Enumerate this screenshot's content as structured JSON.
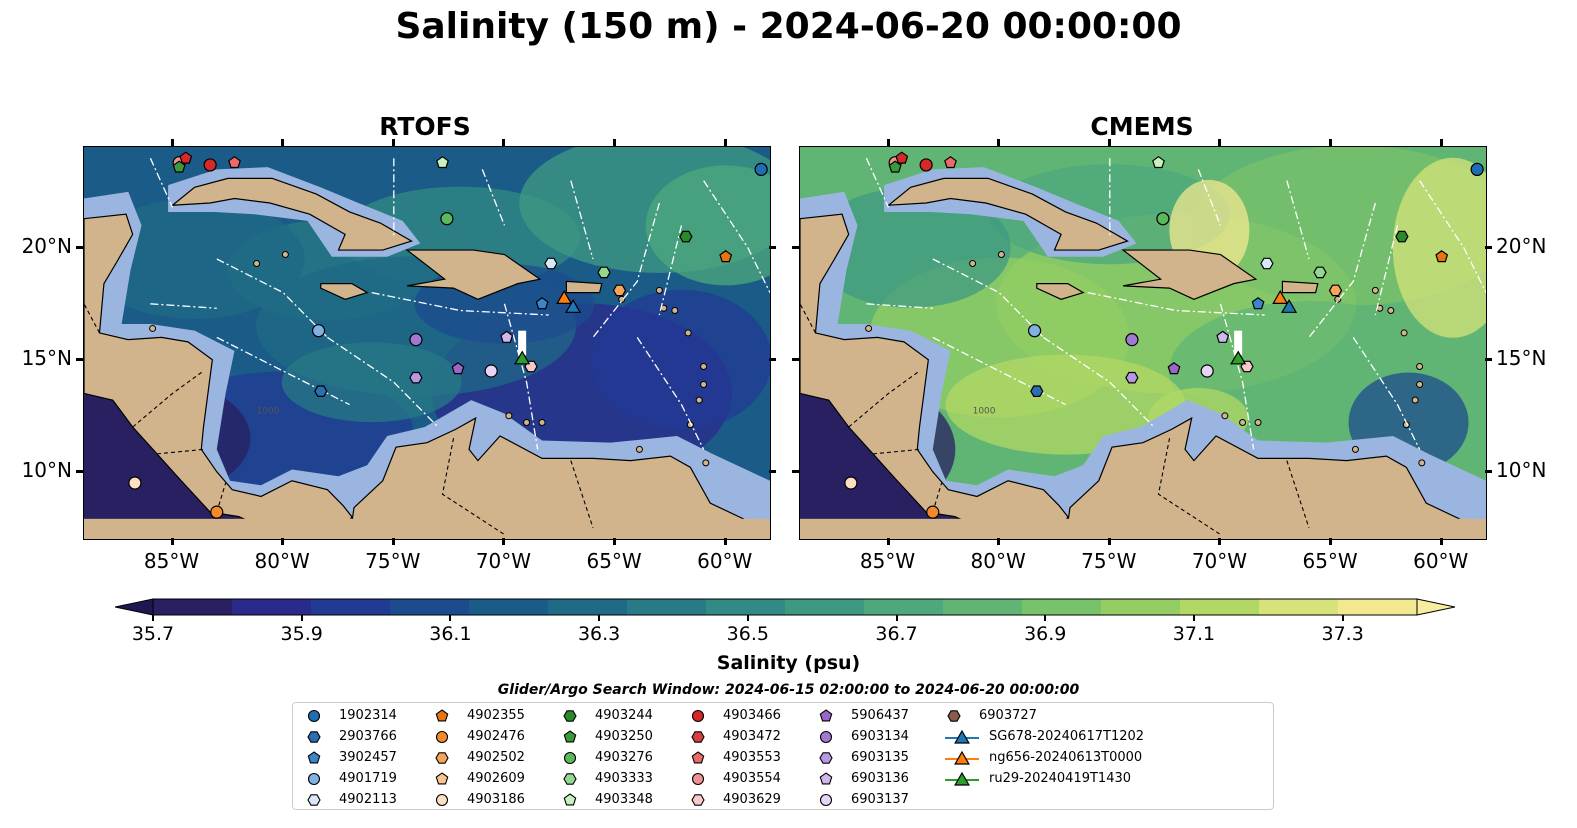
{
  "title": "Salinity (150 m) - 2024-06-20 00:00:00",
  "panels": [
    {
      "name": "rtofs",
      "title": "RTOFS",
      "palette": "low"
    },
    {
      "name": "cmems",
      "title": "CMEMS",
      "palette": "high"
    }
  ],
  "map": {
    "lon_range": [
      -89,
      -58
    ],
    "lat_range": [
      7,
      24.5
    ],
    "lon_ticks": [
      "85°W",
      "80°W",
      "75°W",
      "70°W",
      "65°W",
      "60°W"
    ],
    "lon_tick_values": [
      -85,
      -80,
      -75,
      -70,
      -65,
      -60
    ],
    "lat_ticks": [
      "20°N",
      "15°N",
      "10°N"
    ],
    "lat_tick_values": [
      20,
      15,
      10
    ],
    "land_color": "#d2b48c",
    "shelf_color": "#9ab5e0",
    "bathymetry_label": "1000"
  },
  "colorbar": {
    "title": "Salinity (psu)",
    "ticks": [
      "35.7",
      "35.9",
      "36.1",
      "36.3",
      "36.5",
      "36.7",
      "36.9",
      "37.1",
      "37.3"
    ],
    "min": 35.7,
    "max": 37.4,
    "colors": [
      "#282060",
      "#2a2a8c",
      "#213a94",
      "#1c4c8e",
      "#1a5b88",
      "#1f6a86",
      "#277a86",
      "#338a84",
      "#3f9982",
      "#4ea87c",
      "#61b574",
      "#78c26a",
      "#93cd63",
      "#b1d864",
      "#d6e37a",
      "#f2e890"
    ]
  },
  "search_window": "Glider/Argo Search Window: 2024-06-15 02:00:00 to 2024-06-20 00:00:00",
  "legend": [
    {
      "label": "1902314",
      "marker": "circle",
      "color": "#1f6eb4"
    },
    {
      "label": "2903766",
      "marker": "hexagon",
      "color": "#2a6fb0"
    },
    {
      "label": "3902457",
      "marker": "pentagon",
      "color": "#3a86c8"
    },
    {
      "label": "4901719",
      "marker": "circle",
      "color": "#7fb2e0"
    },
    {
      "label": "4902113",
      "marker": "hexagon",
      "color": "#d8e8f8"
    },
    {
      "label": "4902355",
      "marker": "pentagon",
      "color": "#e87410"
    },
    {
      "label": "4902476",
      "marker": "circle",
      "color": "#f58a2a"
    },
    {
      "label": "4902502",
      "marker": "hexagon",
      "color": "#f9a45a"
    },
    {
      "label": "4902609",
      "marker": "pentagon",
      "color": "#fcc58e"
    },
    {
      "label": "4903186",
      "marker": "circle",
      "color": "#fde0c0"
    },
    {
      "label": "4903244",
      "marker": "hexagon",
      "color": "#2a8a2a"
    },
    {
      "label": "4903250",
      "marker": "pentagon",
      "color": "#3a9a3a"
    },
    {
      "label": "4903276",
      "marker": "circle",
      "color": "#5cb85c"
    },
    {
      "label": "4903333",
      "marker": "hexagon",
      "color": "#94d890"
    },
    {
      "label": "4903348",
      "marker": "pentagon",
      "color": "#c8f0c0"
    },
    {
      "label": "4903466",
      "marker": "circle",
      "color": "#d62828"
    },
    {
      "label": "4903472",
      "marker": "hexagon",
      "color": "#d84040"
    },
    {
      "label": "4903553",
      "marker": "pentagon",
      "color": "#e86a6a"
    },
    {
      "label": "4903554",
      "marker": "circle",
      "color": "#f09090"
    },
    {
      "label": "4903629",
      "marker": "hexagon",
      "color": "#fbc8c8"
    },
    {
      "label": "5906437",
      "marker": "pentagon",
      "color": "#9a66c8"
    },
    {
      "label": "6903134",
      "marker": "circle",
      "color": "#a07ad0"
    },
    {
      "label": "6903135",
      "marker": "hexagon",
      "color": "#b898e0"
    },
    {
      "label": "6903136",
      "marker": "pentagon",
      "color": "#d0b8ec"
    },
    {
      "label": "6903137",
      "marker": "circle",
      "color": "#e8d4f4"
    },
    {
      "label": "6903727",
      "marker": "hexagon",
      "color": "#8c5a4a"
    },
    {
      "label": "SG678-20240617T1202",
      "marker": "triangle-line",
      "color": "#1f77b4"
    },
    {
      "label": "ng656-20240613T0000",
      "marker": "triangle-line",
      "color": "#ff7f0e"
    },
    {
      "label": "ru29-20240419T1430",
      "marker": "triangle-line",
      "color": "#2ca02c"
    }
  ],
  "observations": [
    {
      "lon": -84.7,
      "lat": 23.8,
      "marker": "circle",
      "color": "#f09090"
    },
    {
      "lon": -84.4,
      "lat": 24.0,
      "marker": "pentagon",
      "color": "#d62828"
    },
    {
      "lon": -84.7,
      "lat": 23.6,
      "marker": "pentagon",
      "color": "#3a9a3a"
    },
    {
      "lon": -83.3,
      "lat": 23.7,
      "marker": "circle",
      "color": "#d62828"
    },
    {
      "lon": -82.2,
      "lat": 23.8,
      "marker": "pentagon",
      "color": "#e86a6a"
    },
    {
      "lon": -72.8,
      "lat": 23.8,
      "marker": "pentagon",
      "color": "#c8f0c0"
    },
    {
      "lon": -72.6,
      "lat": 21.3,
      "marker": "circle",
      "color": "#5cb85c"
    },
    {
      "lon": -58.4,
      "lat": 23.5,
      "marker": "circle",
      "color": "#1f6eb4"
    },
    {
      "lon": -61.8,
      "lat": 20.5,
      "marker": "hexagon",
      "color": "#2a8a2a"
    },
    {
      "lon": -60.0,
      "lat": 19.6,
      "marker": "pentagon",
      "color": "#e87410"
    },
    {
      "lon": -67.9,
      "lat": 19.3,
      "marker": "hexagon",
      "color": "#d8e8f8"
    },
    {
      "lon": -65.5,
      "lat": 18.9,
      "marker": "hexagon",
      "color": "#94d890"
    },
    {
      "lon": -64.8,
      "lat": 18.1,
      "marker": "hexagon",
      "color": "#f9a45a"
    },
    {
      "lon": -68.3,
      "lat": 17.5,
      "marker": "pentagon",
      "color": "#3a86c8"
    },
    {
      "lon": -78.4,
      "lat": 16.3,
      "marker": "circle",
      "color": "#7fb2e0"
    },
    {
      "lon": -74.0,
      "lat": 15.9,
      "marker": "circle",
      "color": "#a07ad0"
    },
    {
      "lon": -69.9,
      "lat": 16.0,
      "marker": "pentagon",
      "color": "#d0b8ec"
    },
    {
      "lon": -74.0,
      "lat": 14.2,
      "marker": "hexagon",
      "color": "#b898e0"
    },
    {
      "lon": -72.1,
      "lat": 14.6,
      "marker": "pentagon",
      "color": "#9a66c8"
    },
    {
      "lon": -70.6,
      "lat": 14.5,
      "marker": "circle",
      "color": "#e8d4f4"
    },
    {
      "lon": -68.8,
      "lat": 14.7,
      "marker": "hexagon",
      "color": "#fbc8c8"
    },
    {
      "lon": -78.3,
      "lat": 13.6,
      "marker": "hexagon",
      "color": "#2a6fb0"
    },
    {
      "lon": -86.7,
      "lat": 9.5,
      "marker": "circle",
      "color": "#fde0c0"
    },
    {
      "lon": -83.0,
      "lat": 8.2,
      "marker": "circle",
      "color": "#f58a2a"
    },
    {
      "lon": -66.9,
      "lat": 17.3,
      "marker": "triangle",
      "color": "#1f77b4"
    },
    {
      "lon": -67.3,
      "lat": 17.7,
      "marker": "triangle",
      "color": "#ff7f0e"
    },
    {
      "lon": -69.2,
      "lat": 15.0,
      "marker": "triangle",
      "color": "#2ca02c"
    }
  ]
}
